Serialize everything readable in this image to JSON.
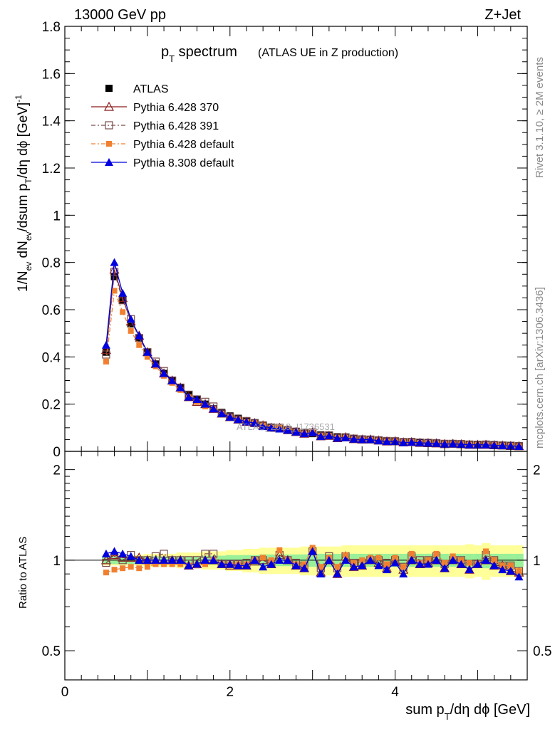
{
  "header": {
    "left": "13000 GeV pp",
    "right": "Z+Jet"
  },
  "title": {
    "main": "p",
    "main_sub": "T",
    "main_rest": " spectrum",
    "small": "(ATLAS UE in Z production)"
  },
  "side_labels": {
    "rivet": "Rivet 3.1.10, ≥ 2M events",
    "mcplots": "mcplots.cern.ch [arXiv:1306.3436]"
  },
  "watermark": "ATLAS_2019_I1736531",
  "colors": {
    "atlas": "#000000",
    "p370": "#8b1a1a",
    "p391": "#7a4a4a",
    "p6def": "#f08030",
    "p8def": "#0000e0",
    "band_inner": "#99f099",
    "band_outer": "#ffff99"
  },
  "chart_data": [
    {
      "type": "scatter",
      "panel": "main",
      "title": "p_T spectrum (ATLAS UE in Z production)",
      "xlabel": "sum p_T/dη dφ [GeV]",
      "ylabel": "1/N_ev dN_ev/dsum p_T/dη dφ [GeV]^-1",
      "xlim": [
        0,
        5.6
      ],
      "ylim": [
        0,
        1.8
      ],
      "yticks": [
        "0",
        "0.2",
        "0.4",
        "0.6",
        "0.8",
        "1",
        "1.2",
        "1.4",
        "1.6",
        "1.8"
      ],
      "legend_position": "top-left",
      "x": [
        0.5,
        0.6,
        0.7,
        0.8,
        0.9,
        1.0,
        1.1,
        1.2,
        1.3,
        1.4,
        1.5,
        1.6,
        1.7,
        1.8,
        1.9,
        2.0,
        2.1,
        2.2,
        2.3,
        2.4,
        2.5,
        2.6,
        2.7,
        2.8,
        2.9,
        3.0,
        3.1,
        3.2,
        3.3,
        3.4,
        3.5,
        3.6,
        3.7,
        3.8,
        3.9,
        4.0,
        4.1,
        4.2,
        4.3,
        4.4,
        4.5,
        4.6,
        4.7,
        4.8,
        4.9,
        5.0,
        5.1,
        5.2,
        5.3,
        5.4,
        5.5
      ],
      "series": [
        {
          "name": "ATLAS",
          "key": "atlas",
          "marker": "square-filled",
          "values": [
            0.42,
            0.74,
            0.64,
            0.54,
            0.48,
            0.42,
            0.37,
            0.33,
            0.3,
            0.27,
            0.24,
            0.22,
            0.2,
            0.18,
            0.165,
            0.15,
            0.14,
            0.13,
            0.12,
            0.11,
            0.103,
            0.096,
            0.09,
            0.085,
            0.08,
            0.075,
            0.07,
            0.066,
            0.062,
            0.058,
            0.055,
            0.052,
            0.05,
            0.047,
            0.045,
            0.043,
            0.041,
            0.039,
            0.037,
            0.036,
            0.034,
            0.033,
            0.032,
            0.031,
            0.03,
            0.029,
            0.028,
            0.027,
            0.026,
            0.025,
            0.024
          ]
        },
        {
          "name": "Pythia 6.428 370",
          "key": "p370",
          "marker": "triangle-open",
          "line": "solid",
          "values": [
            0.43,
            0.77,
            0.65,
            0.55,
            0.49,
            0.42,
            0.37,
            0.33,
            0.3,
            0.27,
            0.23,
            0.21,
            0.2,
            0.18,
            0.16,
            0.145,
            0.135,
            0.125,
            0.12,
            0.11,
            0.1,
            0.1,
            0.09,
            0.082,
            0.075,
            0.08,
            0.064,
            0.066,
            0.056,
            0.06,
            0.052,
            0.05,
            0.05,
            0.046,
            0.042,
            0.043,
            0.038,
            0.039,
            0.036,
            0.035,
            0.034,
            0.031,
            0.032,
            0.03,
            0.028,
            0.028,
            0.028,
            0.026,
            0.025,
            0.023,
            0.022
          ]
        },
        {
          "name": "Pythia 6.428 391",
          "key": "p391",
          "marker": "square-open",
          "line": "dashdot",
          "values": [
            0.41,
            0.76,
            0.64,
            0.56,
            0.48,
            0.42,
            0.38,
            0.34,
            0.3,
            0.27,
            0.24,
            0.22,
            0.21,
            0.19,
            0.16,
            0.145,
            0.135,
            0.128,
            0.12,
            0.11,
            0.1,
            0.1,
            0.09,
            0.083,
            0.077,
            0.08,
            0.066,
            0.068,
            0.058,
            0.06,
            0.054,
            0.051,
            0.05,
            0.047,
            0.044,
            0.043,
            0.039,
            0.04,
            0.037,
            0.036,
            0.035,
            0.032,
            0.032,
            0.031,
            0.029,
            0.028,
            0.029,
            0.027,
            0.025,
            0.024,
            0.022
          ]
        },
        {
          "name": "Pythia 6.428 default",
          "key": "p6def",
          "marker": "square-filled-small",
          "line": "dashdot",
          "values": [
            0.38,
            0.68,
            0.59,
            0.51,
            0.45,
            0.4,
            0.36,
            0.32,
            0.29,
            0.26,
            0.23,
            0.21,
            0.19,
            0.18,
            0.16,
            0.145,
            0.135,
            0.125,
            0.12,
            0.11,
            0.1,
            0.1,
            0.09,
            0.082,
            0.077,
            0.08,
            0.066,
            0.066,
            0.058,
            0.059,
            0.053,
            0.051,
            0.05,
            0.047,
            0.043,
            0.043,
            0.039,
            0.04,
            0.036,
            0.036,
            0.035,
            0.032,
            0.032,
            0.031,
            0.029,
            0.028,
            0.029,
            0.027,
            0.025,
            0.024,
            0.022
          ]
        },
        {
          "name": "Pythia 8.308 default",
          "key": "p8def",
          "marker": "triangle-filled",
          "line": "solid",
          "values": [
            0.45,
            0.8,
            0.67,
            0.56,
            0.49,
            0.42,
            0.37,
            0.33,
            0.3,
            0.27,
            0.23,
            0.22,
            0.2,
            0.18,
            0.16,
            0.145,
            0.135,
            0.125,
            0.12,
            0.105,
            0.1,
            0.095,
            0.09,
            0.082,
            0.075,
            0.08,
            0.063,
            0.066,
            0.056,
            0.058,
            0.052,
            0.05,
            0.05,
            0.045,
            0.042,
            0.042,
            0.037,
            0.039,
            0.036,
            0.035,
            0.034,
            0.031,
            0.032,
            0.03,
            0.028,
            0.028,
            0.028,
            0.026,
            0.024,
            0.023,
            0.021
          ]
        }
      ]
    },
    {
      "type": "scatter",
      "panel": "ratio",
      "ylabel": "Ratio to ATLAS",
      "xlim": [
        0,
        5.6
      ],
      "ylim": [
        0.4,
        2.3
      ],
      "ytick_values": [
        0.5,
        1,
        2
      ],
      "yticks": [
        "0.5",
        "1",
        "2"
      ],
      "xticks": [
        "0",
        "2",
        "4"
      ],
      "xtick_values": [
        0,
        2,
        4
      ],
      "band_inner": [
        0.03,
        0.03,
        0.03,
        0.03,
        0.03,
        0.03,
        0.03,
        0.03,
        0.03,
        0.03,
        0.03,
        0.03,
        0.035,
        0.035,
        0.035,
        0.04,
        0.04,
        0.04,
        0.04,
        0.045,
        0.045,
        0.045,
        0.045,
        0.045,
        0.045,
        0.05,
        0.05,
        0.05,
        0.05,
        0.05,
        0.05,
        0.05,
        0.05,
        0.05,
        0.05,
        0.05,
        0.05,
        0.05,
        0.05,
        0.05,
        0.05,
        0.05,
        0.05,
        0.05,
        0.05,
        0.05,
        0.06,
        0.05,
        0.05,
        0.05,
        0.05
      ],
      "band_outer": [
        0.04,
        0.04,
        0.04,
        0.04,
        0.04,
        0.05,
        0.05,
        0.05,
        0.05,
        0.06,
        0.06,
        0.06,
        0.07,
        0.07,
        0.07,
        0.08,
        0.08,
        0.09,
        0.09,
        0.1,
        0.1,
        0.1,
        0.1,
        0.1,
        0.11,
        0.11,
        0.11,
        0.11,
        0.11,
        0.12,
        0.12,
        0.12,
        0.12,
        0.12,
        0.12,
        0.12,
        0.12,
        0.12,
        0.12,
        0.12,
        0.12,
        0.12,
        0.12,
        0.12,
        0.13,
        0.12,
        0.14,
        0.12,
        0.12,
        0.12,
        0.12
      ],
      "x": [
        0.5,
        0.6,
        0.7,
        0.8,
        0.9,
        1.0,
        1.1,
        1.2,
        1.3,
        1.4,
        1.5,
        1.6,
        1.7,
        1.8,
        1.9,
        2.0,
        2.1,
        2.2,
        2.3,
        2.4,
        2.5,
        2.6,
        2.7,
        2.8,
        2.9,
        3.0,
        3.1,
        3.2,
        3.3,
        3.4,
        3.5,
        3.6,
        3.7,
        3.8,
        3.9,
        4.0,
        4.1,
        4.2,
        4.3,
        4.4,
        4.5,
        4.6,
        4.7,
        4.8,
        4.9,
        5.0,
        5.1,
        5.2,
        5.3,
        5.4,
        5.5
      ],
      "series": [
        {
          "name": "Pythia 6.428 370",
          "key": "p370",
          "marker": "triangle-open",
          "line": "solid",
          "values": [
            1.0,
            1.04,
            1.02,
            1.02,
            1.02,
            1.0,
            1.0,
            1.0,
            1.0,
            1.0,
            0.96,
            0.97,
            1.0,
            1.0,
            0.97,
            0.96,
            0.96,
            0.96,
            0.99,
            1.0,
            0.97,
            1.04,
            1.0,
            0.96,
            0.94,
            1.07,
            0.91,
            1.0,
            0.9,
            1.03,
            0.95,
            0.96,
            1.0,
            0.98,
            0.94,
            1.0,
            0.93,
            1.0,
            0.97,
            0.98,
            1.0,
            0.94,
            1.0,
            0.97,
            0.93,
            0.97,
            1.0,
            0.96,
            0.96,
            0.92,
            0.91
          ]
        },
        {
          "name": "Pythia 6.428 391",
          "key": "p391",
          "marker": "square-open",
          "line": "dashdot",
          "values": [
            0.98,
            1.03,
            1.0,
            1.04,
            1.0,
            1.0,
            1.03,
            1.05,
            1.0,
            1.0,
            1.0,
            1.0,
            1.05,
            1.05,
            0.97,
            0.97,
            0.97,
            0.98,
            1.0,
            1.0,
            0.97,
            1.04,
            1.0,
            0.98,
            0.96,
            1.07,
            0.94,
            1.03,
            0.94,
            1.03,
            0.98,
            0.98,
            1.0,
            1.0,
            0.98,
            1.0,
            0.95,
            1.03,
            1.0,
            1.0,
            1.03,
            0.97,
            1.0,
            1.0,
            0.97,
            0.97,
            1.04,
            1.0,
            0.96,
            0.96,
            0.92
          ]
        },
        {
          "name": "Pythia 6.428 default",
          "key": "p6def",
          "marker": "square-filled-small",
          "line": "dashdot",
          "values": [
            0.91,
            0.93,
            0.94,
            0.95,
            0.94,
            0.95,
            0.97,
            0.97,
            0.97,
            0.97,
            0.96,
            0.96,
            0.97,
            1.0,
            0.97,
            0.97,
            0.97,
            0.97,
            1.0,
            1.02,
            1.0,
            1.08,
            1.0,
            0.97,
            0.97,
            1.1,
            0.95,
            1.02,
            0.95,
            1.04,
            0.98,
            1.0,
            1.02,
            1.02,
            0.97,
            1.02,
            0.95,
            1.05,
            0.98,
            1.0,
            1.05,
            0.98,
            1.03,
            1.0,
            0.98,
            0.97,
            1.07,
            1.0,
            0.96,
            0.96,
            0.92
          ]
        },
        {
          "name": "Pythia 8.308 default",
          "key": "p8def",
          "marker": "triangle-filled",
          "line": "solid",
          "values": [
            1.05,
            1.07,
            1.05,
            1.03,
            1.0,
            1.0,
            1.0,
            1.0,
            1.0,
            1.0,
            0.96,
            0.97,
            1.0,
            1.0,
            0.97,
            0.97,
            0.96,
            0.96,
            1.0,
            0.95,
            0.97,
            1.0,
            1.0,
            0.96,
            0.94,
            1.07,
            0.9,
            1.0,
            0.9,
            1.0,
            0.95,
            0.96,
            1.0,
            0.96,
            0.93,
            0.98,
            0.9,
            1.0,
            0.97,
            0.97,
            1.0,
            0.94,
            1.0,
            0.97,
            0.93,
            0.97,
            1.0,
            0.96,
            0.93,
            0.92,
            0.88
          ]
        }
      ]
    }
  ]
}
